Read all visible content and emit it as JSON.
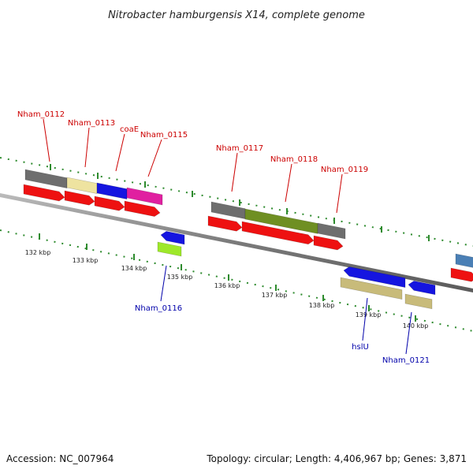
{
  "title": "Nitrobacter hamburgensis X14, complete genome",
  "footer": {
    "accession": "Accession: NC_007964",
    "summary": "Topology: circular; Length: 4,406,967 bp; Genes: 3,871"
  },
  "colors": {
    "forward_label": "#cc0000",
    "reverse_label": "#0000aa",
    "backbone": "#808080",
    "ticks": "#2e8b2e"
  },
  "ticks": [
    {
      "label": "132 kbp"
    },
    {
      "label": "133 kbp"
    },
    {
      "label": "134 kbp"
    },
    {
      "label": "135 kbp"
    },
    {
      "label": "136 kbp"
    },
    {
      "label": "137 kbp"
    },
    {
      "label": "138 kbp"
    },
    {
      "label": "139 kbp"
    },
    {
      "label": "140 kbp"
    }
  ],
  "genes": [
    {
      "label": "Nham_0112",
      "strand": "forward"
    },
    {
      "label": "Nham_0113",
      "strand": "forward"
    },
    {
      "label": "coaE",
      "strand": "forward"
    },
    {
      "label": "Nham_0115",
      "strand": "forward"
    },
    {
      "label": "Nham_0116",
      "strand": "reverse"
    },
    {
      "label": "Nham_0117",
      "strand": "forward"
    },
    {
      "label": "Nham_0118",
      "strand": "forward"
    },
    {
      "label": "Nham_0119",
      "strand": "forward"
    },
    {
      "label": "hslU",
      "strand": "reverse"
    },
    {
      "label": "Nham_0121",
      "strand": "reverse"
    }
  ]
}
